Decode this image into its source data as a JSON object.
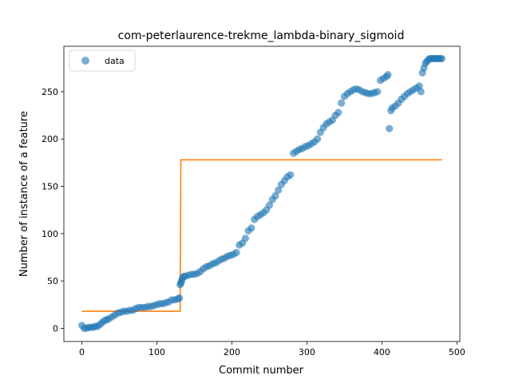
{
  "chart_data": {
    "type": "scatter",
    "title": "com-peterlaurence-trekme_lambda-binary_sigmoid",
    "xlabel": "Commit number",
    "ylabel": "Number of instance of a feature",
    "xlim": [
      -24,
      504
    ],
    "ylim": [
      -14,
      298
    ],
    "xticks": [
      0,
      100,
      200,
      300,
      400,
      500
    ],
    "yticks": [
      0,
      50,
      100,
      150,
      200,
      250
    ],
    "legend": {
      "placement": "top-left",
      "entries": [
        "data"
      ]
    },
    "colors": {
      "data": "#1f77b4",
      "fit": "#ff7f0e"
    },
    "series": [
      {
        "name": "data",
        "kind": "scatter",
        "x": [
          0,
          3,
          6,
          9,
          12,
          15,
          18,
          21,
          24,
          27,
          30,
          33,
          36,
          40,
          44,
          48,
          52,
          56,
          60,
          64,
          68,
          72,
          76,
          80,
          84,
          88,
          92,
          96,
          100,
          104,
          108,
          112,
          116,
          120,
          124,
          128,
          130,
          131,
          132,
          133,
          134,
          136,
          138,
          142,
          146,
          150,
          154,
          158,
          162,
          166,
          170,
          174,
          178,
          182,
          186,
          190,
          194,
          198,
          202,
          206,
          210,
          214,
          218,
          222,
          226,
          230,
          234,
          238,
          242,
          246,
          250,
          254,
          258,
          262,
          266,
          270,
          274,
          278,
          282,
          286,
          290,
          294,
          298,
          302,
          306,
          310,
          314,
          318,
          322,
          326,
          330,
          334,
          338,
          342,
          346,
          350,
          354,
          358,
          362,
          366,
          370,
          374,
          378,
          382,
          386,
          390,
          394,
          398,
          402,
          406,
          408,
          410,
          412,
          414,
          418,
          422,
          426,
          430,
          434,
          438,
          442,
          446,
          450,
          452,
          454,
          456,
          458,
          460,
          462,
          464,
          466,
          468,
          470,
          472,
          474,
          476,
          478,
          480
        ],
        "y": [
          3,
          0,
          0,
          1,
          1,
          1,
          2,
          2,
          4,
          6,
          8,
          9,
          10,
          12,
          14,
          16,
          17,
          18,
          18,
          19,
          19,
          21,
          22,
          22,
          22,
          23,
          23,
          24,
          25,
          26,
          26,
          27,
          28,
          30,
          30,
          31,
          32,
          46,
          48,
          50,
          53,
          55,
          55,
          56,
          57,
          57,
          58,
          60,
          63,
          65,
          66,
          68,
          69,
          71,
          73,
          74,
          76,
          77,
          78,
          80,
          88,
          90,
          95,
          103,
          106,
          115,
          118,
          120,
          122,
          125,
          130,
          136,
          140,
          146,
          152,
          156,
          160,
          162,
          185,
          187,
          189,
          190,
          192,
          193,
          195,
          197,
          200,
          207,
          212,
          216,
          218,
          220,
          225,
          228,
          238,
          245,
          248,
          250,
          252,
          253,
          252,
          250,
          249,
          248,
          248,
          249,
          250,
          262,
          264,
          266,
          268,
          211,
          230,
          233,
          235,
          238,
          242,
          245,
          248,
          250,
          252,
          254,
          256,
          250,
          270,
          275,
          280,
          282,
          284,
          285,
          285,
          285,
          285,
          285,
          285,
          285,
          285,
          285
        ]
      },
      {
        "name": "",
        "kind": "line",
        "x": [
          0,
          131,
          132,
          480
        ],
        "y": [
          18,
          18,
          178,
          178
        ]
      }
    ]
  }
}
